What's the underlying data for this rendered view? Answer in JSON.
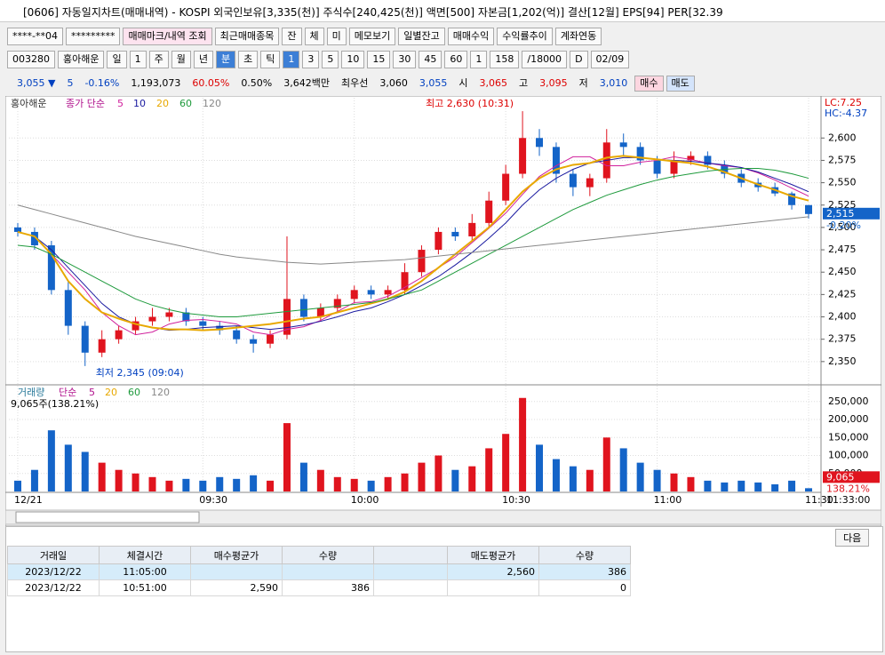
{
  "header": {
    "title": "[0606] 자동일지차트(매매내역) - KOSPI 외국인보유[3,335(천)] 주식수[240,425(천)] 액면[500] 자본금[1,202(억)] 결산[12월] EPS[94] PER[32.39"
  },
  "toolbar1": [
    "****-**04",
    "*********",
    "매매마크/내역 조회",
    "최근매매종목",
    "잔",
    "체",
    "미",
    "메모보기",
    "일별잔고",
    "매매수익",
    "수익률추이",
    "계좌연동"
  ],
  "toolbar2": [
    "003280",
    "홍아해운",
    "일",
    "1",
    "주",
    "월",
    "년",
    "분",
    "초",
    "틱",
    "1",
    "3",
    "5",
    "10",
    "15",
    "30",
    "45",
    "60",
    "1",
    "158",
    "/18000",
    "D",
    "02/09"
  ],
  "quote": [
    "3,055 ▼",
    "5",
    "-0.16%",
    "1,193,073",
    "60.05%",
    "0.50%",
    "3,642백만",
    "최우선",
    "3,060",
    "3,055",
    "시",
    "3,065",
    "고",
    "3,095",
    "저",
    "3,010",
    "매수",
    "매도"
  ],
  "chart_data": {
    "type": "candlestick",
    "legend_title": "홍아해운",
    "ma_label": "종가 단순",
    "categories": [
      "12/21",
      null,
      null,
      null,
      null,
      null,
      null,
      null,
      null,
      null,
      null,
      "09:30",
      null,
      null,
      null,
      null,
      null,
      null,
      null,
      null,
      "10:00",
      null,
      null,
      null,
      null,
      null,
      null,
      null,
      null,
      "10:30",
      null,
      null,
      null,
      null,
      null,
      null,
      null,
      null,
      "11:00",
      null,
      null,
      null,
      null,
      null,
      null,
      null,
      null,
      "11:30"
    ],
    "open": [
      2500,
      2495,
      2480,
      2430,
      2390,
      2360,
      2375,
      2385,
      2395,
      2400,
      2405,
      2395,
      2390,
      2385,
      2375,
      2370,
      2380,
      2420,
      2400,
      2410,
      2420,
      2430,
      2425,
      2430,
      2450,
      2475,
      2495,
      2490,
      2505,
      2530,
      2560,
      2600,
      2590,
      2560,
      2545,
      2555,
      2595,
      2590,
      2575,
      2560,
      2575,
      2580,
      2570,
      2560,
      2550,
      2545,
      2538,
      2525
    ],
    "high": [
      2505,
      2500,
      2485,
      2440,
      2395,
      2385,
      2390,
      2400,
      2410,
      2410,
      2410,
      2400,
      2395,
      2390,
      2380,
      2385,
      2490,
      2425,
      2415,
      2425,
      2435,
      2435,
      2435,
      2460,
      2480,
      2500,
      2500,
      2515,
      2540,
      2570,
      2630,
      2610,
      2595,
      2565,
      2560,
      2610,
      2605,
      2595,
      2580,
      2585,
      2585,
      2585,
      2575,
      2565,
      2555,
      2550,
      2540,
      2525
    ],
    "low": [
      2490,
      2475,
      2425,
      2380,
      2345,
      2355,
      2370,
      2380,
      2390,
      2395,
      2390,
      2385,
      2380,
      2370,
      2360,
      2365,
      2375,
      2395,
      2395,
      2405,
      2415,
      2420,
      2420,
      2425,
      2445,
      2470,
      2485,
      2485,
      2500,
      2525,
      2555,
      2580,
      2550,
      2535,
      2535,
      2550,
      2580,
      2570,
      2555,
      2555,
      2570,
      2565,
      2555,
      2545,
      2540,
      2535,
      2520,
      2510
    ],
    "close": [
      2495,
      2480,
      2430,
      2390,
      2360,
      2375,
      2385,
      2395,
      2400,
      2405,
      2395,
      2390,
      2385,
      2375,
      2370,
      2380,
      2420,
      2400,
      2410,
      2420,
      2430,
      2425,
      2430,
      2450,
      2475,
      2495,
      2490,
      2505,
      2530,
      2560,
      2600,
      2590,
      2560,
      2545,
      2555,
      2595,
      2590,
      2575,
      2560,
      2575,
      2580,
      2570,
      2560,
      2550,
      2545,
      2538,
      2525,
      2515
    ],
    "up_color": "#e0141e",
    "down_color": "#1464c8",
    "series": [
      {
        "name": "5",
        "color": "#d0209c",
        "values": [
          2495,
          2490,
          2470,
          2450,
          2430,
          2405,
          2390,
          2380,
          2383,
          2392,
          2396,
          2397,
          2395,
          2392,
          2383,
          2380,
          2386,
          2389,
          2396,
          2406,
          2416,
          2417,
          2423,
          2433,
          2444,
          2455,
          2467,
          2483,
          2499,
          2516,
          2537,
          2557,
          2569,
          2579,
          2579,
          2569,
          2569,
          2573,
          2575,
          2579,
          2576,
          2572,
          2569,
          2567,
          2561,
          2553,
          2544,
          2535
        ]
      },
      {
        "name": "10",
        "color": "#1a1aa0",
        "values": [
          2495,
          2490,
          2475,
          2455,
          2435,
          2415,
          2400,
          2392,
          2388,
          2385,
          2386,
          2388,
          2389,
          2390,
          2388,
          2386,
          2388,
          2391,
          2395,
          2400,
          2406,
          2410,
          2417,
          2425,
          2435,
          2445,
          2458,
          2472,
          2488,
          2505,
          2525,
          2542,
          2555,
          2565,
          2572,
          2575,
          2578,
          2578,
          2576,
          2575,
          2574,
          2572,
          2570,
          2567,
          2562,
          2555,
          2548,
          2540
        ]
      },
      {
        "name": "20",
        "color": "#e8a800",
        "values": [
          2495,
          2490,
          2470,
          2440,
          2420,
          2405,
          2398,
          2392,
          2388,
          2386,
          2386,
          2385,
          2386,
          2388,
          2390,
          2392,
          2395,
          2398,
          2400,
          2405,
          2410,
          2415,
          2420,
          2428,
          2440,
          2455,
          2470,
          2485,
          2500,
          2520,
          2540,
          2555,
          2565,
          2570,
          2572,
          2578,
          2580,
          2578,
          2576,
          2574,
          2572,
          2568,
          2562,
          2555,
          2548,
          2542,
          2535,
          2530
        ]
      },
      {
        "name": "60",
        "color": "#1e9a3c",
        "values": [
          2480,
          2478,
          2470,
          2460,
          2450,
          2440,
          2430,
          2420,
          2413,
          2408,
          2404,
          2402,
          2400,
          2400,
          2402,
          2404,
          2406,
          2408,
          2410,
          2412,
          2414,
          2416,
          2420,
          2425,
          2430,
          2440,
          2450,
          2460,
          2470,
          2480,
          2490,
          2500,
          2510,
          2520,
          2528,
          2536,
          2542,
          2548,
          2553,
          2557,
          2560,
          2563,
          2565,
          2566,
          2566,
          2564,
          2560,
          2555
        ]
      },
      {
        "name": "120",
        "color": "#888888",
        "values": [
          2525,
          2520,
          2515,
          2510,
          2505,
          2500,
          2495,
          2490,
          2486,
          2482,
          2478,
          2474,
          2470,
          2467,
          2465,
          2463,
          2461,
          2460,
          2459,
          2460,
          2461,
          2462,
          2463,
          2464,
          2466,
          2468,
          2470,
          2472,
          2474,
          2476,
          2478,
          2480,
          2482,
          2484,
          2486,
          2488,
          2490,
          2492,
          2494,
          2496,
          2498,
          2500,
          2502,
          2504,
          2506,
          2508,
          2510,
          2512
        ]
      }
    ],
    "ylim": [
      2325,
      2645
    ],
    "yticks": [
      {
        "value": 2350,
        "label": "2,350"
      },
      {
        "value": 2375,
        "label": "2,375"
      },
      {
        "value": 2400,
        "label": "2,400"
      },
      {
        "value": 2425,
        "label": "2,425"
      },
      {
        "value": 2450,
        "label": "2,450"
      },
      {
        "value": 2475,
        "label": "2,475"
      },
      {
        "value": 2500,
        "label": "2,500"
      },
      {
        "value": 2525,
        "label": "2,525"
      },
      {
        "value": 2550,
        "label": "2,550"
      },
      {
        "value": 2575,
        "label": "2,575"
      },
      {
        "value": 2600,
        "label": "2,600"
      }
    ],
    "grid": true,
    "annotations": [
      {
        "text": "최고 2,630 (10:31)",
        "value": 2630
      },
      {
        "text": "최저 2,345 (09:04)",
        "value": 2345
      }
    ],
    "right_labels": {
      "lc": "LC:7.25",
      "hc": "HC:-4.37",
      "last": {
        "value": 2515,
        "label": "2,515"
      },
      "change": "-0.20%"
    },
    "volume": {
      "label": "거래량",
      "ma_label": "단순",
      "ma_names": [
        "5",
        "20",
        "60",
        "120"
      ],
      "value_label": "9,065주(138.21%)",
      "values": [
        30000,
        60000,
        170000,
        130000,
        110000,
        80000,
        60000,
        50000,
        40000,
        30000,
        35000,
        30000,
        40000,
        35000,
        45000,
        30000,
        190000,
        80000,
        60000,
        40000,
        35000,
        30000,
        40000,
        50000,
        80000,
        100000,
        60000,
        70000,
        120000,
        160000,
        260000,
        130000,
        90000,
        70000,
        60000,
        150000,
        120000,
        80000,
        60000,
        50000,
        40000,
        30000,
        25000,
        30000,
        25000,
        20000,
        30000,
        9065
      ],
      "ylim": [
        0,
        294000
      ],
      "yticks": [
        {
          "value": 50000,
          "label": "50,000"
        },
        {
          "value": 100000,
          "label": "100,000"
        },
        {
          "value": 150000,
          "label": "150,000"
        },
        {
          "value": 200000,
          "label": "200,000"
        },
        {
          "value": 250000,
          "label": "250,000"
        }
      ],
      "last": {
        "value": 9065,
        "label": "9,065"
      },
      "ratio": "138.21%"
    },
    "time": "11:33:00"
  },
  "next_button": "다음",
  "table": {
    "columns": [
      "거래일",
      "체결시간",
      "매수평균가",
      "수량",
      "매도평균가",
      "수량"
    ],
    "rows": [
      {
        "date": "2023/12/22",
        "time": "11:05:00",
        "buy_price": null,
        "buy_qty": null,
        "sell_price": "2,560",
        "sell_qty": "386"
      },
      {
        "date": "2023/12/22",
        "time": "10:51:00",
        "buy_price": "2,590",
        "buy_qty": "386",
        "sell_price": null,
        "sell_qty": "0"
      }
    ]
  }
}
